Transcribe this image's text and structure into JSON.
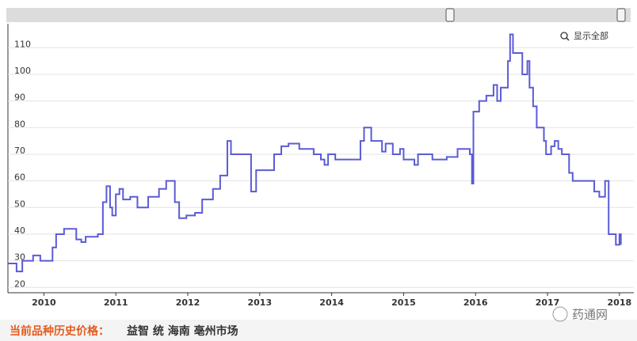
{
  "chart_data": {
    "type": "line",
    "step": true,
    "color": "#5b5bd6",
    "grid": true,
    "xlim": [
      2009.5,
      2018.2
    ],
    "xticks": [
      2010,
      2011,
      2012,
      2013,
      2014,
      2015,
      2016,
      2017,
      2018
    ],
    "ylim": [
      18,
      119
    ],
    "yticks": [
      20,
      30,
      40,
      50,
      60,
      70,
      80,
      90,
      100,
      110
    ],
    "x": [
      2009.5,
      2009.62,
      2009.7,
      2009.85,
      2009.95,
      2010.12,
      2010.17,
      2010.28,
      2010.45,
      2010.52,
      2010.58,
      2010.75,
      2010.82,
      2010.87,
      2010.92,
      2010.95,
      2011.0,
      2011.05,
      2011.1,
      2011.2,
      2011.3,
      2011.45,
      2011.6,
      2011.7,
      2011.82,
      2011.88,
      2011.98,
      2012.1,
      2012.2,
      2012.35,
      2012.45,
      2012.55,
      2012.6,
      2012.88,
      2012.95,
      2013.2,
      2013.3,
      2013.4,
      2013.55,
      2013.75,
      2013.85,
      2013.9,
      2013.95,
      2014.05,
      2014.4,
      2014.45,
      2014.55,
      2014.7,
      2014.75,
      2014.85,
      2014.95,
      2015.0,
      2015.15,
      2015.2,
      2015.4,
      2015.6,
      2015.75,
      2015.92,
      2015.95,
      2015.97,
      2016.05,
      2016.15,
      2016.25,
      2016.3,
      2016.35,
      2016.45,
      2016.48,
      2016.52,
      2016.65,
      2016.72,
      2016.75,
      2016.8,
      2016.85,
      2016.95,
      2016.98,
      2017.05,
      2017.1,
      2017.15,
      2017.2,
      2017.3,
      2017.35,
      2017.65,
      2017.72,
      2017.8,
      2017.85,
      2017.95,
      2018.0,
      2018.02
    ],
    "values": [
      29,
      26,
      30,
      32,
      30,
      35,
      40,
      42,
      38,
      37,
      39,
      40,
      52,
      58,
      50,
      47,
      55,
      57,
      53,
      54,
      50,
      54,
      57,
      60,
      52,
      46,
      47,
      48,
      53,
      57,
      62,
      75,
      70,
      56,
      64,
      70,
      73,
      74,
      72,
      70,
      68,
      66,
      70,
      68,
      75,
      80,
      75,
      71,
      74,
      70,
      72,
      68,
      66,
      70,
      68,
      69,
      72,
      70,
      59,
      86,
      90,
      92,
      96,
      90,
      95,
      105,
      115,
      108,
      100,
      105,
      95,
      88,
      80,
      75,
      70,
      73,
      75,
      72,
      70,
      63,
      60,
      56,
      54,
      60,
      40,
      36,
      40,
      36
    ],
    "show_all": "显示全部",
    "caption_label": "当前品种历史价格：",
    "caption_item": "益智 统 海南 亳州市场",
    "watermark": "药通网"
  }
}
